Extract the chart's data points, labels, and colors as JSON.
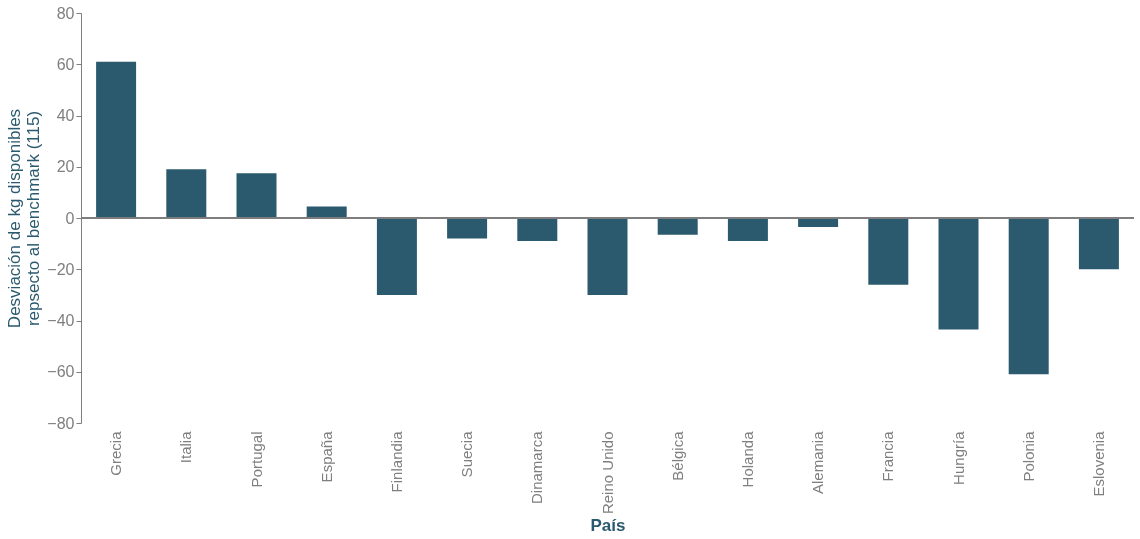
{
  "chart_data": {
    "type": "bar",
    "xlabel": "País",
    "ylabel": "Desviación de kg disponibles\nrepsecto al benchmark (115)",
    "categories": [
      "Grecia",
      "Italia",
      "Portugal",
      "España",
      "Finlandia",
      "Suecia",
      "Dinamarca",
      "Reino Unido",
      "Bélgica",
      "Holanda",
      "Alemania",
      "Francia",
      "Hungría",
      "Polonia",
      "Eslovenia"
    ],
    "values": [
      61,
      19,
      17.5,
      4.5,
      -30,
      -8,
      -9,
      -30,
      -6.5,
      -9,
      -3.5,
      -26,
      -43.5,
      -61,
      -20
    ],
    "color": "#2b5a6e",
    "ylim": [
      -80,
      80
    ],
    "yticks": [
      -80,
      -60,
      -40,
      -20,
      0,
      20,
      40,
      60,
      80
    ],
    "grid": false,
    "ref_lines": [
      {
        "axis": "y",
        "value": 0,
        "color": "#7f7f7f"
      }
    ]
  }
}
